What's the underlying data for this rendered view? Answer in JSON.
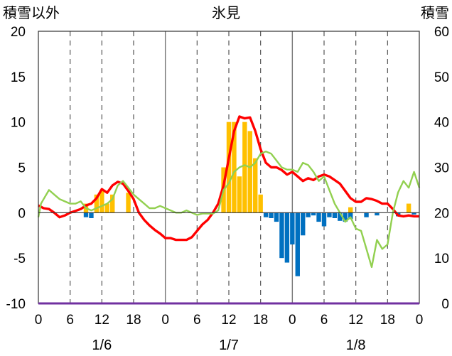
{
  "chart_data": {
    "type": "bar+line",
    "title": "氷見",
    "left_axis_label": "積雪以外",
    "right_axis_label": "積雪",
    "y_left": {
      "lim": [
        -10,
        20
      ],
      "ticks": [
        20,
        15,
        10,
        5,
        0,
        -5,
        -10
      ],
      "tick_labels": [
        "20",
        "15",
        "10",
        "5",
        "0",
        "-5",
        "-10"
      ]
    },
    "y_right": {
      "lim": [
        0,
        60
      ],
      "ticks": [
        60,
        50,
        40,
        30,
        20,
        10,
        0
      ],
      "tick_labels": [
        "60",
        "50",
        "40",
        "30",
        "20",
        "10",
        "0"
      ]
    },
    "x": {
      "lim": [
        0,
        72
      ],
      "ticks": [
        0,
        6,
        12,
        18,
        24,
        30,
        36,
        42,
        48,
        54,
        60,
        66,
        72
      ],
      "tick_labels": [
        "0",
        "6",
        "12",
        "18",
        "0",
        "6",
        "12",
        "18",
        "0",
        "6",
        "12",
        "18",
        "0"
      ]
    },
    "dates": [
      {
        "label": "1/6",
        "hour": 12
      },
      {
        "label": "1/7",
        "hour": 36
      },
      {
        "label": "1/8",
        "hour": 60
      }
    ],
    "grid": "vertical, dashed at 12h and 18h-style intervals",
    "series": [
      {
        "kind": "bar",
        "color": "#ffc000",
        "points": [
          [
            9,
            1
          ],
          [
            11,
            2
          ],
          [
            12,
            2.5
          ],
          [
            13,
            1
          ],
          [
            14,
            2
          ],
          [
            17,
            2.2
          ],
          [
            35,
            5
          ],
          [
            36,
            10
          ],
          [
            37,
            10
          ],
          [
            38,
            4
          ],
          [
            39,
            10
          ],
          [
            40,
            9
          ],
          [
            41,
            6
          ],
          [
            42,
            2
          ],
          [
            59,
            0.6
          ],
          [
            70,
            1
          ]
        ]
      },
      {
        "kind": "bar",
        "color": "#0070c0",
        "points": [
          [
            9,
            -0.5
          ],
          [
            10,
            -0.6
          ],
          [
            43,
            -0.5
          ],
          [
            44,
            -0.6
          ],
          [
            45,
            -1
          ],
          [
            46,
            -5
          ],
          [
            47,
            -5.5
          ],
          [
            48,
            -3.5
          ],
          [
            49,
            -7
          ],
          [
            50,
            -2.5
          ],
          [
            51,
            -0.5
          ],
          [
            52,
            -0.3
          ],
          [
            53,
            -1
          ],
          [
            54,
            -1.5
          ],
          [
            55,
            -0.5
          ],
          [
            56,
            -0.6
          ],
          [
            57,
            -0.9
          ],
          [
            58,
            -1
          ],
          [
            59,
            -0.7
          ],
          [
            62,
            -0.5
          ],
          [
            64,
            -0.3
          ],
          [
            68,
            -0.4
          ],
          [
            71,
            -0.2
          ]
        ]
      },
      {
        "kind": "line",
        "color": "#ff0000",
        "axis": "left",
        "points": [
          [
            0,
            0.8
          ],
          [
            1,
            0.5
          ],
          [
            2,
            0.4
          ],
          [
            3,
            0
          ],
          [
            4,
            -0.5
          ],
          [
            5,
            -0.3
          ],
          [
            6,
            0
          ],
          [
            7,
            0.2
          ],
          [
            8,
            0.4
          ],
          [
            9,
            0.8
          ],
          [
            10,
            1.0
          ],
          [
            11,
            1.6
          ],
          [
            12,
            2.6
          ],
          [
            13,
            2.2
          ],
          [
            14,
            3.0
          ],
          [
            15,
            3.4
          ],
          [
            16,
            3.2
          ],
          [
            17,
            2.4
          ],
          [
            18,
            1.5
          ],
          [
            19,
            0
          ],
          [
            20,
            -0.8
          ],
          [
            21,
            -1.4
          ],
          [
            22,
            -1.9
          ],
          [
            23,
            -2.3
          ],
          [
            24,
            -2.8
          ],
          [
            25,
            -2.8
          ],
          [
            26,
            -3.0
          ],
          [
            27,
            -3.0
          ],
          [
            28,
            -3.0
          ],
          [
            29,
            -2.7
          ],
          [
            30,
            -2.0
          ],
          [
            31,
            -1.3
          ],
          [
            32,
            -0.8
          ],
          [
            33,
            0
          ],
          [
            34,
            1.0
          ],
          [
            35,
            3.0
          ],
          [
            36,
            6.0
          ],
          [
            37,
            9.0
          ],
          [
            38,
            10.6
          ],
          [
            39,
            10.4
          ],
          [
            40,
            10.5
          ],
          [
            41,
            9.0
          ],
          [
            42,
            7.0
          ],
          [
            43,
            5.5
          ],
          [
            44,
            5.0
          ],
          [
            45,
            5.0
          ],
          [
            46,
            4.7
          ],
          [
            47,
            4.2
          ],
          [
            48,
            4.5
          ],
          [
            49,
            4.0
          ],
          [
            50,
            3.5
          ],
          [
            51,
            3.8
          ],
          [
            52,
            3.6
          ],
          [
            53,
            4.0
          ],
          [
            54,
            4.2
          ],
          [
            55,
            4.0
          ],
          [
            56,
            3.6
          ],
          [
            57,
            3.2
          ],
          [
            58,
            2.4
          ],
          [
            59,
            1.6
          ],
          [
            60,
            1.2
          ],
          [
            61,
            1.2
          ],
          [
            62,
            1.6
          ],
          [
            63,
            1.5
          ],
          [
            64,
            1.3
          ],
          [
            65,
            1.0
          ],
          [
            66,
            1.0
          ],
          [
            67,
            0.4
          ],
          [
            68,
            -0.3
          ],
          [
            69,
            -0.4
          ],
          [
            70,
            -0.3
          ],
          [
            71,
            -0.4
          ],
          [
            72,
            -0.4
          ]
        ]
      },
      {
        "kind": "line",
        "color": "#92d050",
        "axis": "right",
        "points": [
          [
            0,
            19
          ],
          [
            0.5,
            22
          ],
          [
            1,
            23
          ],
          [
            2,
            25
          ],
          [
            3,
            24
          ],
          [
            4,
            23
          ],
          [
            5,
            22.5
          ],
          [
            6,
            22
          ],
          [
            7,
            22
          ],
          [
            8,
            22.5
          ],
          [
            9,
            21
          ],
          [
            10,
            20.5
          ],
          [
            11,
            21
          ],
          [
            12,
            21.5
          ],
          [
            13,
            22
          ],
          [
            14,
            23
          ],
          [
            15,
            26
          ],
          [
            16,
            27
          ],
          [
            17,
            25.5
          ],
          [
            18,
            24
          ],
          [
            19,
            23
          ],
          [
            20,
            22
          ],
          [
            21,
            21
          ],
          [
            22,
            21
          ],
          [
            23,
            21.5
          ],
          [
            24,
            21
          ],
          [
            25,
            20.5
          ],
          [
            26,
            20
          ],
          [
            27,
            20
          ],
          [
            28,
            20.5
          ],
          [
            29,
            20
          ],
          [
            30,
            19.5
          ],
          [
            31,
            19.8
          ],
          [
            32,
            19.8
          ],
          [
            33,
            19.8
          ],
          [
            34,
            20.5
          ],
          [
            35,
            25
          ],
          [
            36,
            26.5
          ],
          [
            37,
            29
          ],
          [
            38,
            30
          ],
          [
            39,
            30.5
          ],
          [
            40,
            30
          ],
          [
            41,
            31
          ],
          [
            42,
            33
          ],
          [
            43,
            33.5
          ],
          [
            44,
            33
          ],
          [
            45,
            31.5
          ],
          [
            46,
            30
          ],
          [
            47,
            29.5
          ],
          [
            48,
            29.5
          ],
          [
            49,
            29
          ],
          [
            50,
            31
          ],
          [
            51,
            30.5
          ],
          [
            52,
            29
          ],
          [
            53,
            27
          ],
          [
            54,
            28
          ],
          [
            55,
            25
          ],
          [
            56,
            22
          ],
          [
            57,
            20
          ],
          [
            58,
            18
          ],
          [
            59,
            19
          ],
          [
            60,
            16.5
          ],
          [
            61,
            16
          ],
          [
            62,
            12
          ],
          [
            63,
            8
          ],
          [
            64,
            14
          ],
          [
            65,
            12
          ],
          [
            66,
            13
          ],
          [
            67,
            20
          ],
          [
            68,
            24.5
          ],
          [
            69,
            27
          ],
          [
            70,
            25.5
          ],
          [
            71,
            29
          ],
          [
            72,
            25.5
          ]
        ]
      }
    ]
  }
}
